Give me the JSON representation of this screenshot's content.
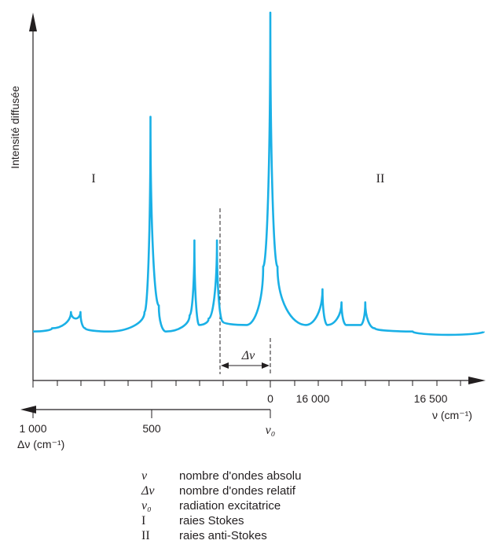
{
  "chart_data": {
    "type": "line",
    "title": "",
    "ylabel": "Intensité diffusée",
    "color": "#1ab0e6",
    "x_ref_label": "0",
    "x_abs_ticks": [
      "16 000",
      "16 500"
    ],
    "x_abs_label": "ν (cm⁻¹)",
    "x_rel_ticks": [
      "1 000",
      "500"
    ],
    "x_rel_label": "Δν (cm⁻¹)",
    "nu0_label": "ν₀",
    "delta_label": "Δν",
    "region_labels": [
      "I",
      "II"
    ],
    "ylim": [
      0,
      1
    ],
    "series": [
      {
        "points": [
          [
            1000,
            0.02
          ],
          [
            920,
            0.03
          ],
          [
            840,
            0.08
          ],
          [
            820,
            0.06
          ],
          [
            800,
            0.08
          ],
          [
            780,
            0.03
          ],
          [
            680,
            0.02
          ],
          [
            530,
            0.08
          ],
          [
            505,
            0.68
          ],
          [
            470,
            0.1
          ],
          [
            440,
            0.02
          ],
          [
            340,
            0.07
          ],
          [
            320,
            0.3
          ],
          [
            300,
            0.04
          ],
          [
            260,
            0.06
          ],
          [
            225,
            0.3
          ],
          [
            200,
            0.05
          ],
          [
            100,
            0.04
          ],
          [
            30,
            0.22
          ],
          [
            0,
            1.0
          ],
          [
            -30,
            0.22
          ],
          [
            -150,
            0.04
          ],
          [
            -220,
            0.15
          ],
          [
            -240,
            0.04
          ],
          [
            -300,
            0.11
          ],
          [
            -320,
            0.04
          ],
          [
            -380,
            0.04
          ],
          [
            -400,
            0.11
          ],
          [
            -440,
            0.03
          ],
          [
            -600,
            0.02
          ],
          [
            -750,
            0.01
          ],
          [
            -900,
            0.02
          ]
        ]
      }
    ],
    "legend": [
      {
        "symbol": "ν",
        "text": "nombre d'ondes absolu"
      },
      {
        "symbol": "Δν",
        "text": "nombre d'ondes relatif"
      },
      {
        "symbol": "ν₀",
        "text": "radiation excitatrice"
      },
      {
        "symbol": "I",
        "text": "raies Stokes"
      },
      {
        "symbol": "II",
        "text": "raies anti-Stokes"
      }
    ]
  }
}
